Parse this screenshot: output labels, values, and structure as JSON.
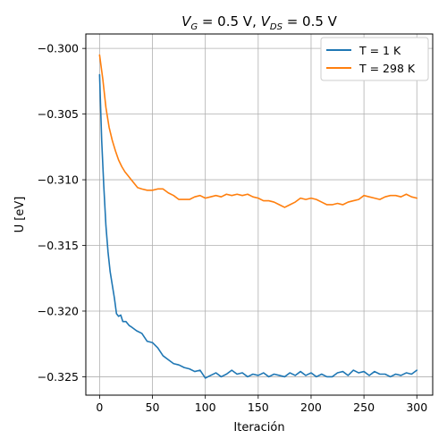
{
  "chart_data": {
    "type": "line",
    "title": {
      "v": "V",
      "v_g_sub": "G",
      "mid": " = 0.5 V, ",
      "v_ds_sub": "DS",
      "end": " = 0.5 V"
    },
    "xlabel": "Iteración",
    "ylabel": "U [eV]",
    "xlim": [
      -13,
      315
    ],
    "ylim": [
      -0.3264,
      -0.2989
    ],
    "xticks": [
      0,
      50,
      100,
      150,
      200,
      250,
      300
    ],
    "yticks": [
      -0.325,
      -0.32,
      -0.315,
      -0.31,
      -0.305,
      -0.3
    ],
    "xtick_labels": [
      "0",
      "50",
      "100",
      "150",
      "200",
      "250",
      "300"
    ],
    "ytick_labels": [
      "−0.325",
      "−0.320",
      "−0.315",
      "−0.310",
      "−0.305",
      "−0.300"
    ],
    "grid": true,
    "legend_position": "top-right",
    "series": [
      {
        "name": "T = 1 K",
        "color": "#1f77b4",
        "x": [
          0,
          2,
          4,
          6,
          8,
          10,
          12,
          14,
          16,
          18,
          20,
          22,
          25,
          28,
          30,
          35,
          40,
          45,
          50,
          55,
          60,
          65,
          70,
          75,
          80,
          85,
          90,
          95,
          100,
          105,
          110,
          115,
          120,
          125,
          130,
          135,
          140,
          145,
          150,
          155,
          160,
          165,
          170,
          175,
          180,
          185,
          190,
          195,
          200,
          205,
          210,
          215,
          220,
          225,
          230,
          235,
          240,
          245,
          250,
          255,
          260,
          265,
          270,
          275,
          280,
          285,
          290,
          295,
          300
        ],
        "y": [
          -0.302,
          -0.307,
          -0.3105,
          -0.3135,
          -0.3155,
          -0.317,
          -0.318,
          -0.319,
          -0.3202,
          -0.3204,
          -0.3203,
          -0.3208,
          -0.3208,
          -0.3211,
          -0.3212,
          -0.3215,
          -0.3217,
          -0.3223,
          -0.3224,
          -0.3228,
          -0.3234,
          -0.3237,
          -0.324,
          -0.3241,
          -0.3243,
          -0.3244,
          -0.3246,
          -0.3245,
          -0.3251,
          -0.3249,
          -0.3247,
          -0.325,
          -0.3248,
          -0.3245,
          -0.3248,
          -0.3247,
          -0.325,
          -0.3248,
          -0.3249,
          -0.3247,
          -0.325,
          -0.3248,
          -0.3249,
          -0.325,
          -0.3247,
          -0.3249,
          -0.3246,
          -0.3249,
          -0.3247,
          -0.325,
          -0.3248,
          -0.325,
          -0.325,
          -0.3247,
          -0.3246,
          -0.3249,
          -0.3245,
          -0.3247,
          -0.3246,
          -0.3249,
          -0.3246,
          -0.3248,
          -0.3248,
          -0.325,
          -0.3248,
          -0.3249,
          -0.3247,
          -0.3248,
          -0.3245
        ]
      },
      {
        "name": "T = 298 K",
        "color": "#ff7f0e",
        "x": [
          0,
          3,
          6,
          9,
          12,
          15,
          18,
          21,
          24,
          27,
          30,
          33,
          36,
          40,
          45,
          50,
          55,
          60,
          65,
          70,
          75,
          80,
          85,
          90,
          95,
          100,
          105,
          110,
          115,
          120,
          125,
          130,
          135,
          140,
          145,
          150,
          155,
          160,
          165,
          170,
          175,
          180,
          185,
          190,
          195,
          200,
          205,
          210,
          215,
          220,
          225,
          230,
          235,
          240,
          245,
          250,
          255,
          260,
          265,
          270,
          275,
          280,
          285,
          290,
          295,
          300
        ],
        "y": [
          -0.3005,
          -0.3023,
          -0.3045,
          -0.306,
          -0.307,
          -0.3078,
          -0.3085,
          -0.309,
          -0.3094,
          -0.3097,
          -0.31,
          -0.3103,
          -0.3106,
          -0.3107,
          -0.3108,
          -0.3108,
          -0.3107,
          -0.3107,
          -0.311,
          -0.3112,
          -0.3115,
          -0.3115,
          -0.3115,
          -0.3113,
          -0.3112,
          -0.3114,
          -0.3113,
          -0.3112,
          -0.3113,
          -0.3111,
          -0.3112,
          -0.3111,
          -0.3112,
          -0.3111,
          -0.3113,
          -0.3114,
          -0.3116,
          -0.3116,
          -0.3117,
          -0.3119,
          -0.3121,
          -0.3119,
          -0.3117,
          -0.3114,
          -0.3115,
          -0.3114,
          -0.3115,
          -0.3117,
          -0.3119,
          -0.3119,
          -0.3118,
          -0.3119,
          -0.3117,
          -0.3116,
          -0.3115,
          -0.3112,
          -0.3113,
          -0.3114,
          -0.3115,
          -0.3113,
          -0.3112,
          -0.3112,
          -0.3113,
          -0.3111,
          -0.3113,
          -0.3114
        ]
      }
    ]
  }
}
